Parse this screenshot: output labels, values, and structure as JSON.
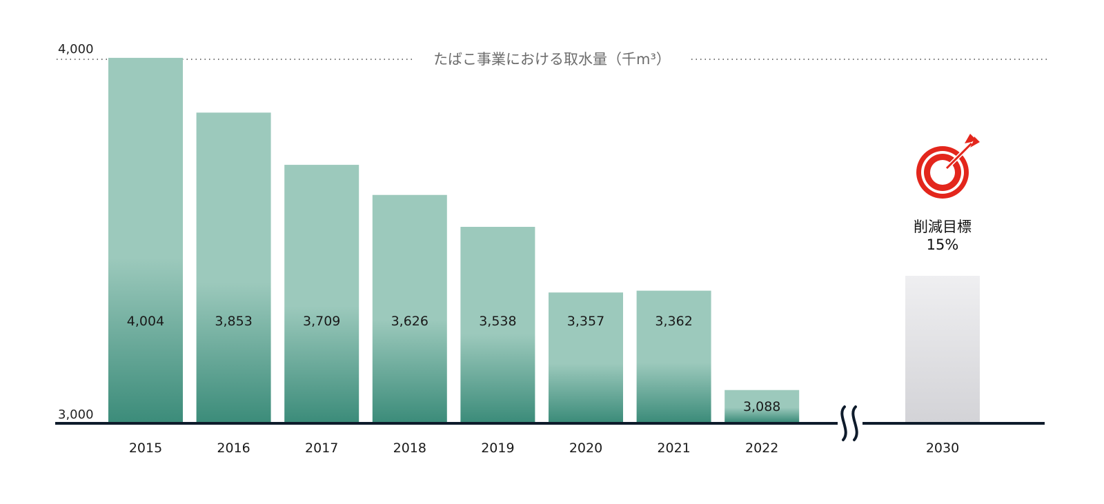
{
  "chart_data": {
    "type": "bar",
    "title": "たばこ事業における取水量（千m³）",
    "ylim": [
      3000,
      4000
    ],
    "yticks": [
      "3,000",
      "4,000"
    ],
    "grid": false,
    "categories": [
      "2015",
      "2016",
      "2017",
      "2018",
      "2019",
      "2020",
      "2021",
      "2022"
    ],
    "values": [
      4004,
      3853,
      3709,
      3626,
      3538,
      3357,
      3362,
      3088
    ],
    "value_labels": [
      "4,004",
      "3,853",
      "3,709",
      "3,626",
      "3,538",
      "3,357",
      "3,362",
      "3,088"
    ],
    "target": {
      "category": "2030",
      "value": 3403,
      "label_line1": "削減目標",
      "label_line2": "15%",
      "icon": "target-arrow-icon"
    },
    "axis_break": true
  },
  "colors": {
    "bar_top": "#9cc9bc",
    "bar_bottom": "#3c8c7a",
    "target_top": "#efeff1",
    "target_bottom": "#d3d3d7",
    "axis": "#0e1b2b",
    "icon_red": "#e3261c"
  }
}
